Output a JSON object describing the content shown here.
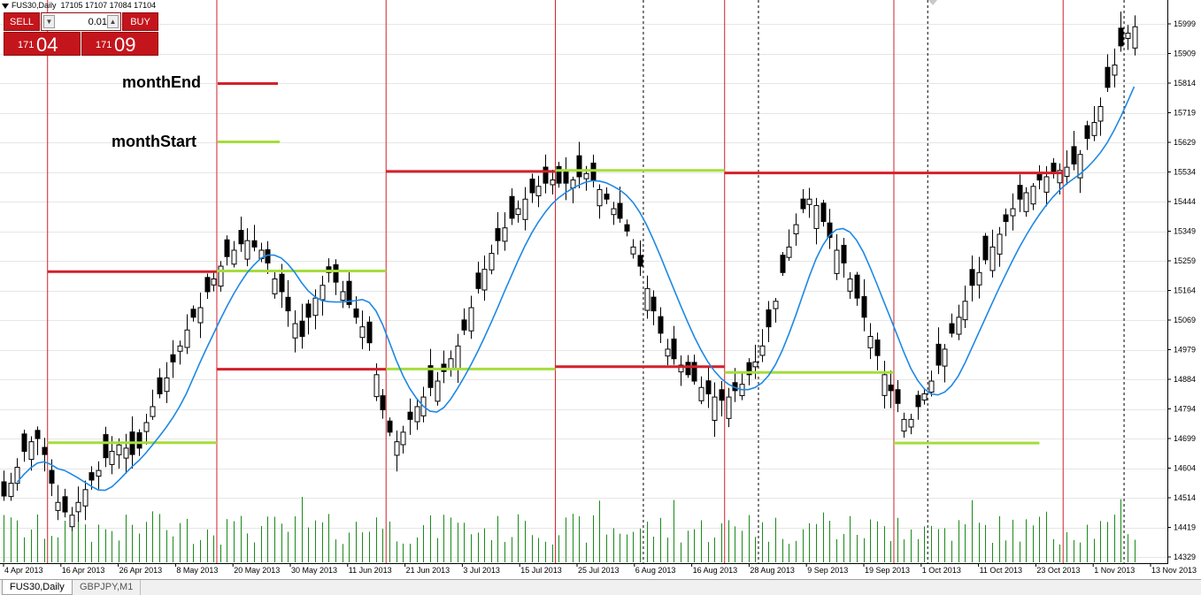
{
  "chart_window": {
    "title": "FUS30,Daily",
    "ohlc_readout": "17105 17107 17084 17104"
  },
  "trade_panel": {
    "sell_label": "SELL",
    "buy_label": "BUY",
    "lot_value": "0.01",
    "sell_price_small": "171",
    "sell_price_big": "04",
    "buy_price_small": "171",
    "buy_price_big": "09",
    "button_color": "#c4151c"
  },
  "legend": {
    "month_end_label": "monthEnd",
    "month_start_label": "monthStart",
    "month_end_color": "#d2212a",
    "month_start_color": "#a5dd3c"
  },
  "tabs": [
    {
      "label": "FUS30,Daily",
      "active": true
    },
    {
      "label": "GBPJPY,M1",
      "active": false
    }
  ],
  "chart_data": {
    "type": "candlestick",
    "symbol": "FUS30",
    "timeframe": "Daily",
    "ma_color": "#1e88e5",
    "volume_color": "#1a8a1a",
    "y_ticks": [
      "15999",
      "15909",
      "15814",
      "15719",
      "15629",
      "15534",
      "15444",
      "15349",
      "15259",
      "15164",
      "15069",
      "14979",
      "14884",
      "14794",
      "14699",
      "14604",
      "14514",
      "14419",
      "14329"
    ],
    "ylim": [
      14329,
      15999
    ],
    "x_ticks": [
      "4 Apr 2013",
      "16 Apr 2013",
      "26 Apr 2013",
      "8 May 2013",
      "20 May 2013",
      "30 May 2013",
      "11 Jun 2013",
      "21 Jun 2013",
      "3 Jul 2013",
      "15 Jul 2013",
      "25 Jul 2013",
      "6 Aug 2013",
      "16 Aug 2013",
      "28 Aug 2013",
      "9 Sep 2013",
      "19 Sep 2013",
      "1 Oct 2013",
      "11 Oct 2013",
      "23 Oct 2013",
      "1 Nov 2013",
      "13 Nov 2013"
    ],
    "month_separators": [
      6.5,
      31.5,
      56.5,
      81.5,
      106.5,
      131.5,
      156.5,
      181.5
    ],
    "week_separators": [
      94.5,
      111.5,
      136.5,
      165.5,
      188.5
    ],
    "close": [
      14520,
      14560,
      14610,
      14660,
      14690,
      14700,
      14650,
      14560,
      14500,
      14470,
      14460,
      14500,
      14540,
      14570,
      14600,
      14640,
      14660,
      14680,
      14670,
      14650,
      14670,
      14750,
      14800,
      14840,
      14890,
      14940,
      14990,
      15040,
      15080,
      15110,
      15160,
      15200,
      15240,
      15270,
      15290,
      15310,
      15320,
      15300,
      15290,
      15250,
      15200,
      15160,
      15100,
      15060,
      15020,
      15080,
      15140,
      15180,
      15220,
      15190,
      15160,
      15120,
      15080,
      15050,
      15000,
      14900,
      14790,
      14720,
      14690,
      14720,
      14760,
      14800,
      14830,
      14860,
      14880,
      14910,
      14950,
      14990,
      15040,
      15110,
      15170,
      15230,
      15280,
      15320,
      15360,
      15390,
      15420,
      15450,
      15470,
      15490,
      15500,
      15510,
      15500,
      15500,
      15510,
      15520,
      15530,
      15510,
      15480,
      15450,
      15420,
      15390,
      15350,
      15300,
      15240,
      15170,
      15100,
      15030,
      14980,
      14950,
      14930,
      14900,
      14880,
      14860,
      14840,
      14830,
      14820,
      14830,
      14850,
      14870,
      14900,
      14940,
      14990,
      15050,
      15130,
      15220,
      15300,
      15370,
      15420,
      15450,
      15430,
      15380,
      15330,
      15290,
      15250,
      15200,
      15140,
      15080,
      15020,
      14960,
      14900,
      14850,
      14810,
      14760,
      14760,
      14800,
      14840,
      14880,
      14930,
      14980,
      15030,
      15080,
      15130,
      15180,
      15220,
      15260,
      15300,
      15340,
      15380,
      15420,
      15450,
      15470,
      15490,
      15510,
      15520,
      15530,
      15540,
      15550,
      15560,
      15590,
      15640,
      15690,
      15740,
      15800,
      15870,
      15930,
      15970,
      15990
    ],
    "ma_period": 9,
    "month_end_segments": [
      {
        "start": 6.5,
        "end": 31.5,
        "price": 15223
      },
      {
        "start": 31.5,
        "end": 56.5,
        "price": 14917
      },
      {
        "start": 56.5,
        "end": 81.5,
        "price": 15537
      },
      {
        "start": 81.5,
        "end": 106.5,
        "price": 14925
      },
      {
        "start": 106.5,
        "end": 131.5,
        "price": 15532
      },
      {
        "start": 131.5,
        "end": 156.5,
        "price": 15532
      }
    ],
    "month_start_segments": [
      {
        "start": 6.5,
        "end": 31.5,
        "price": 14687
      },
      {
        "start": 31.5,
        "end": 56.5,
        "price": 15225
      },
      {
        "start": 56.5,
        "end": 81.5,
        "price": 14918
      },
      {
        "start": 81.5,
        "end": 106.5,
        "price": 15540
      },
      {
        "start": 106.5,
        "end": 131.5,
        "price": 14907
      },
      {
        "start": 131.5,
        "end": 153,
        "price": 14686
      }
    ]
  }
}
